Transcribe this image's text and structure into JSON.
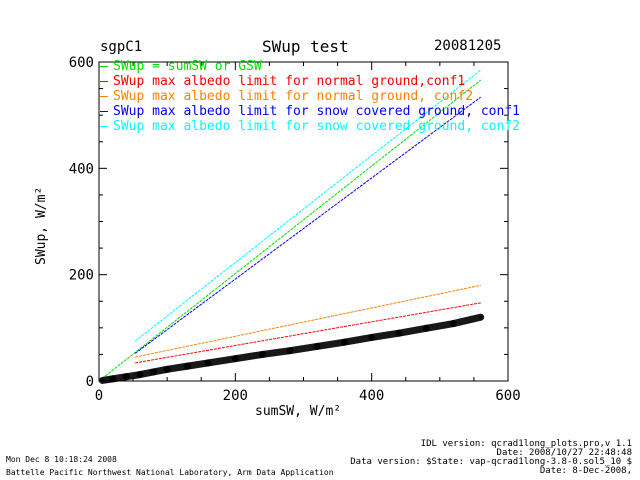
{
  "header": {
    "site": "sgpC1",
    "title": "SWup test",
    "date": "20081205"
  },
  "footer": {
    "left": [
      "Mon Dec  8 10:18:24 2008",
      "Battelle Pacific Northwest National Laboratory, Arm Data Application"
    ],
    "right": [
      "IDL version: qcrad1long_plots.pro,v 1.1",
      "Date: 2008/10/27 22:48:48",
      "Data version: $State: vap-qcrad1long-3.8-0.sol5_10 $",
      "Date: 8-Dec-2008,"
    ]
  },
  "chart_data": {
    "type": "scatter",
    "title": "SWup test",
    "xlabel": "sumSW, W/m²",
    "ylabel": "SWup, W/m²",
    "xlim": [
      0,
      600
    ],
    "ylim": [
      0,
      600
    ],
    "xticks": [
      "0",
      "200",
      "400",
      "600"
    ],
    "yticks": [
      "0",
      "200",
      "400",
      "600"
    ],
    "grid": false,
    "legend_placement": "top-left",
    "series": [
      {
        "name": "SWup = sumSW or GSW",
        "color": "#00e000",
        "kind": "line",
        "x": [
          0,
          560
        ],
        "y": [
          0,
          566
        ]
      },
      {
        "name": "SWup max albedo limit for normal ground,conf1",
        "color": "#ff0000",
        "kind": "line",
        "x": [
          53,
          560
        ],
        "y": [
          34,
          147
        ]
      },
      {
        "name": "SWup max albedo limit for normal ground, conf2",
        "color": "#ff8000",
        "kind": "line",
        "x": [
          53,
          560
        ],
        "y": [
          45,
          180
        ]
      },
      {
        "name": "SWup max albedo limit for snow covered ground, conf1",
        "color": "#0000ff",
        "kind": "line",
        "x": [
          53,
          560
        ],
        "y": [
          52,
          534
        ]
      },
      {
        "name": "SWup max albedo limit for snow covered ground, conf2",
        "color": "#00ffff",
        "kind": "line",
        "x": [
          53,
          560
        ],
        "y": [
          75,
          585
        ]
      },
      {
        "color": "#000000",
        "kind": "scatter",
        "x": [
          5,
          20,
          40,
          60,
          80,
          100,
          130,
          160,
          200,
          240,
          280,
          320,
          360,
          400,
          440,
          480,
          520,
          560
        ],
        "y": [
          1,
          4,
          8,
          12,
          17,
          22,
          28,
          34,
          42,
          50,
          57,
          65,
          73,
          82,
          90,
          99,
          108,
          120
        ]
      }
    ]
  }
}
